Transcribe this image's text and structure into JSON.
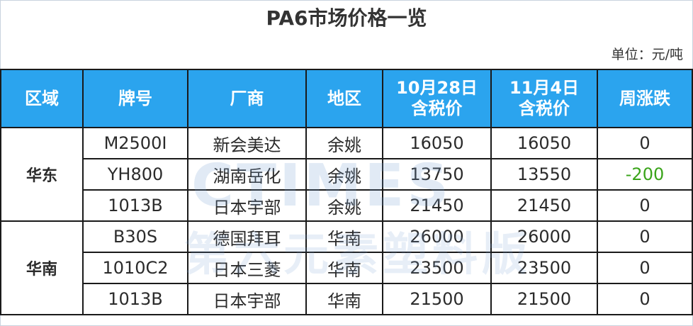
{
  "title": "PA6市场价格一览",
  "unit": "单位：元/吨",
  "watermark": {
    "line1": "CTIMES",
    "line2": "第六元素塑料版"
  },
  "colors": {
    "header_bg": "#2ba4ee",
    "decrease": "#3aa41a"
  },
  "headers": [
    "区域",
    "牌号",
    "厂商",
    "地区",
    "10月28日\n含税价",
    "11月4日\n含税价",
    "周涨跌"
  ],
  "groups": [
    {
      "region": "华东",
      "rows": [
        {
          "grade": "M2500I",
          "maker": "新会美达",
          "area": "余姚",
          "price1": "16050",
          "price2": "16050",
          "change": "0"
        },
        {
          "grade": "YH800",
          "maker": "湖南岳化",
          "area": "余姚",
          "price1": "13750",
          "price2": "13550",
          "change": "-200"
        },
        {
          "grade": "1013B",
          "maker": "日本宇部",
          "area": "余姚",
          "price1": "21450",
          "price2": "21450",
          "change": "0"
        }
      ]
    },
    {
      "region": "华南",
      "rows": [
        {
          "grade": "B30S",
          "maker": "德国拜耳",
          "area": "华南",
          "price1": "26000",
          "price2": "26000",
          "change": "0"
        },
        {
          "grade": "1010C2",
          "maker": "日本三菱",
          "area": "华南",
          "price1": "23500",
          "price2": "23500",
          "change": "0"
        },
        {
          "grade": "1013B",
          "maker": "日本宇部",
          "area": "华南",
          "price1": "21500",
          "price2": "21500",
          "change": "0"
        }
      ]
    }
  ]
}
